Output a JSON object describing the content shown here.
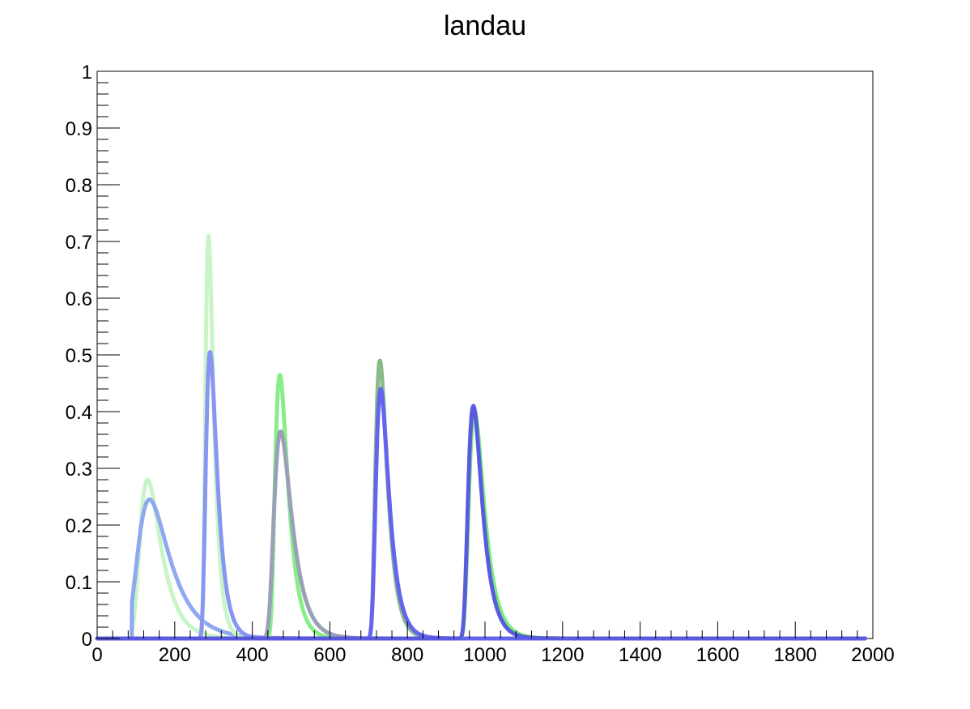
{
  "chart_data": {
    "type": "line",
    "title": "landau",
    "xlabel": "",
    "ylabel": "",
    "xlim": [
      0,
      2000
    ],
    "ylim": [
      0,
      1
    ],
    "x_ticks": [
      "0",
      "200",
      "400",
      "600",
      "800",
      "1000",
      "1200",
      "1400",
      "1600",
      "1800",
      "2000"
    ],
    "y_ticks": [
      "0",
      "0.1",
      "0.2",
      "0.3",
      "0.4",
      "0.5",
      "0.6",
      "0.7",
      "0.8",
      "0.9",
      "1"
    ],
    "grid": false,
    "legend": "none",
    "series": [
      {
        "color": "#c8f5c8",
        "width": 5,
        "mpv": 130,
        "peak": 0.28,
        "sigma": 18,
        "start": 90
      },
      {
        "color": "#8fa8f0",
        "width": 5,
        "mpv": 135,
        "peak": 0.245,
        "sigma": 27,
        "start": 90
      },
      {
        "color": "#c8f5c8",
        "width": 5,
        "mpv": 287,
        "peak": 0.71,
        "sigma": 7,
        "start": 250
      },
      {
        "color": "#8896f2",
        "width": 5,
        "mpv": 291,
        "peak": 0.505,
        "sigma": 9.5,
        "start": 250
      },
      {
        "color": "#88ee88",
        "width": 5,
        "mpv": 471,
        "peak": 0.465,
        "sigma": 11,
        "start": 425
      },
      {
        "color": "#9aa0b8",
        "width": 5,
        "mpv": 473,
        "peak": 0.365,
        "sigma": 15,
        "start": 425
      },
      {
        "color": "#88bb88",
        "width": 5,
        "mpv": 729,
        "peak": 0.49,
        "sigma": 10,
        "start": 690
      },
      {
        "color": "#6464ee",
        "width": 5,
        "mpv": 731,
        "peak": 0.44,
        "sigma": 11,
        "start": 690
      },
      {
        "color": "#77ee77",
        "width": 5,
        "mpv": 973,
        "peak": 0.4,
        "sigma": 13,
        "start": 930
      },
      {
        "color": "#5a5ae0",
        "width": 5,
        "mpv": 970,
        "peak": 0.41,
        "sigma": 12,
        "start": 930
      }
    ]
  }
}
